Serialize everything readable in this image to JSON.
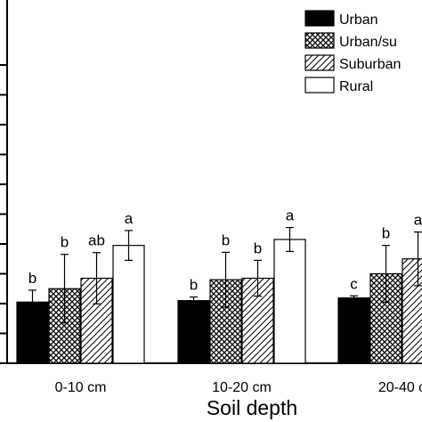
{
  "chart_data": {
    "type": "bar",
    "title": "",
    "xlabel": "Soil depth",
    "ylabel": "",
    "categories": [
      "0-10 cm",
      "10-20 cm",
      "20-40 c"
    ],
    "series": [
      {
        "name": "Urban",
        "pattern": "solid",
        "values": [
          2.05,
          2.1,
          2.19
        ],
        "errors": [
          0.4,
          0.12,
          0.07
        ],
        "significance": [
          "b",
          "b",
          "c"
        ]
      },
      {
        "name": "Urban/su",
        "pattern": "crosshatch",
        "values": [
          2.5,
          2.8,
          3.0
        ],
        "errors": [
          1.15,
          0.92,
          0.95
        ],
        "significance": [
          "b",
          "b",
          "b"
        ]
      },
      {
        "name": "Suburban",
        "pattern": "diagonal",
        "values": [
          2.85,
          2.85,
          3.5
        ],
        "errors": [
          0.86,
          0.6,
          0.9
        ],
        "significance": [
          "ab",
          "b",
          "a"
        ]
      },
      {
        "name": "Rural",
        "pattern": "open",
        "values": [
          3.95,
          4.15,
          null
        ],
        "errors": [
          0.5,
          0.4,
          null
        ],
        "significance": [
          "a",
          "a",
          ""
        ]
      }
    ],
    "ylim": [
      0,
      10
    ],
    "yticks": [
      0,
      1,
      2,
      3,
      4,
      5,
      6,
      7,
      8,
      9,
      10
    ],
    "grid": false,
    "legend_position": "top-right",
    "colors": {
      "solid": "#000000",
      "open": "#ffffff",
      "pattern": "#000000"
    }
  }
}
